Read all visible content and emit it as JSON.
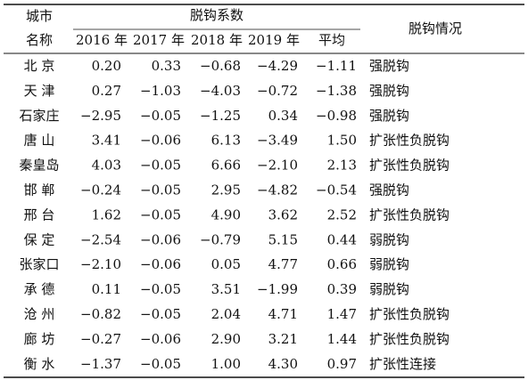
{
  "table": {
    "header": {
      "city_lines": [
        "城市",
        "名称"
      ],
      "group": "脱钩系数",
      "columns": [
        "2016 年",
        "2017 年",
        "2018 年",
        "2019 年",
        "平均"
      ],
      "status": "脱钩情况"
    },
    "rows": [
      [
        "北 京",
        "0.20",
        "0.33",
        "−0.68",
        "−4.29",
        "−1.11",
        "强脱钩"
      ],
      [
        "天 津",
        "0.27",
        "−1.03",
        "−4.03",
        "−0.72",
        "−1.38",
        "强脱钩"
      ],
      [
        "石家庄",
        "−2.95",
        "−0.05",
        "−1.25",
        "0.34",
        "−0.98",
        "强脱钩"
      ],
      [
        "唐 山",
        "3.41",
        "−0.06",
        "6.13",
        "−3.49",
        "1.50",
        "扩张性负脱钩"
      ],
      [
        "秦皇岛",
        "4.03",
        "−0.05",
        "6.66",
        "−2.10",
        "2.13",
        "扩张性负脱钩"
      ],
      [
        "邯 郸",
        "−0.24",
        "−0.05",
        "2.95",
        "−4.82",
        "−0.54",
        "强脱钩"
      ],
      [
        "邢 台",
        "1.62",
        "−0.05",
        "4.90",
        "3.62",
        "2.52",
        "扩张性负脱钩"
      ],
      [
        "保 定",
        "−2.54",
        "−0.06",
        "−0.79",
        "5.15",
        "0.44",
        "弱脱钩"
      ],
      [
        "张家口",
        "−2.10",
        "−0.06",
        "0.05",
        "4.77",
        "0.66",
        "弱脱钩"
      ],
      [
        "承 德",
        "0.11",
        "−0.05",
        "3.51",
        "−1.99",
        "0.39",
        "弱脱钩"
      ],
      [
        "沧 州",
        "−0.82",
        "−0.05",
        "2.04",
        "4.71",
        "1.47",
        "扩张性负脱钩"
      ],
      [
        "廊 坊",
        "−0.27",
        "−0.06",
        "2.90",
        "3.21",
        "1.44",
        "扩张性负脱钩"
      ],
      [
        "衡 水",
        "−1.37",
        "−0.05",
        "1.00",
        "4.30",
        "0.97",
        "扩张性连接"
      ]
    ]
  }
}
